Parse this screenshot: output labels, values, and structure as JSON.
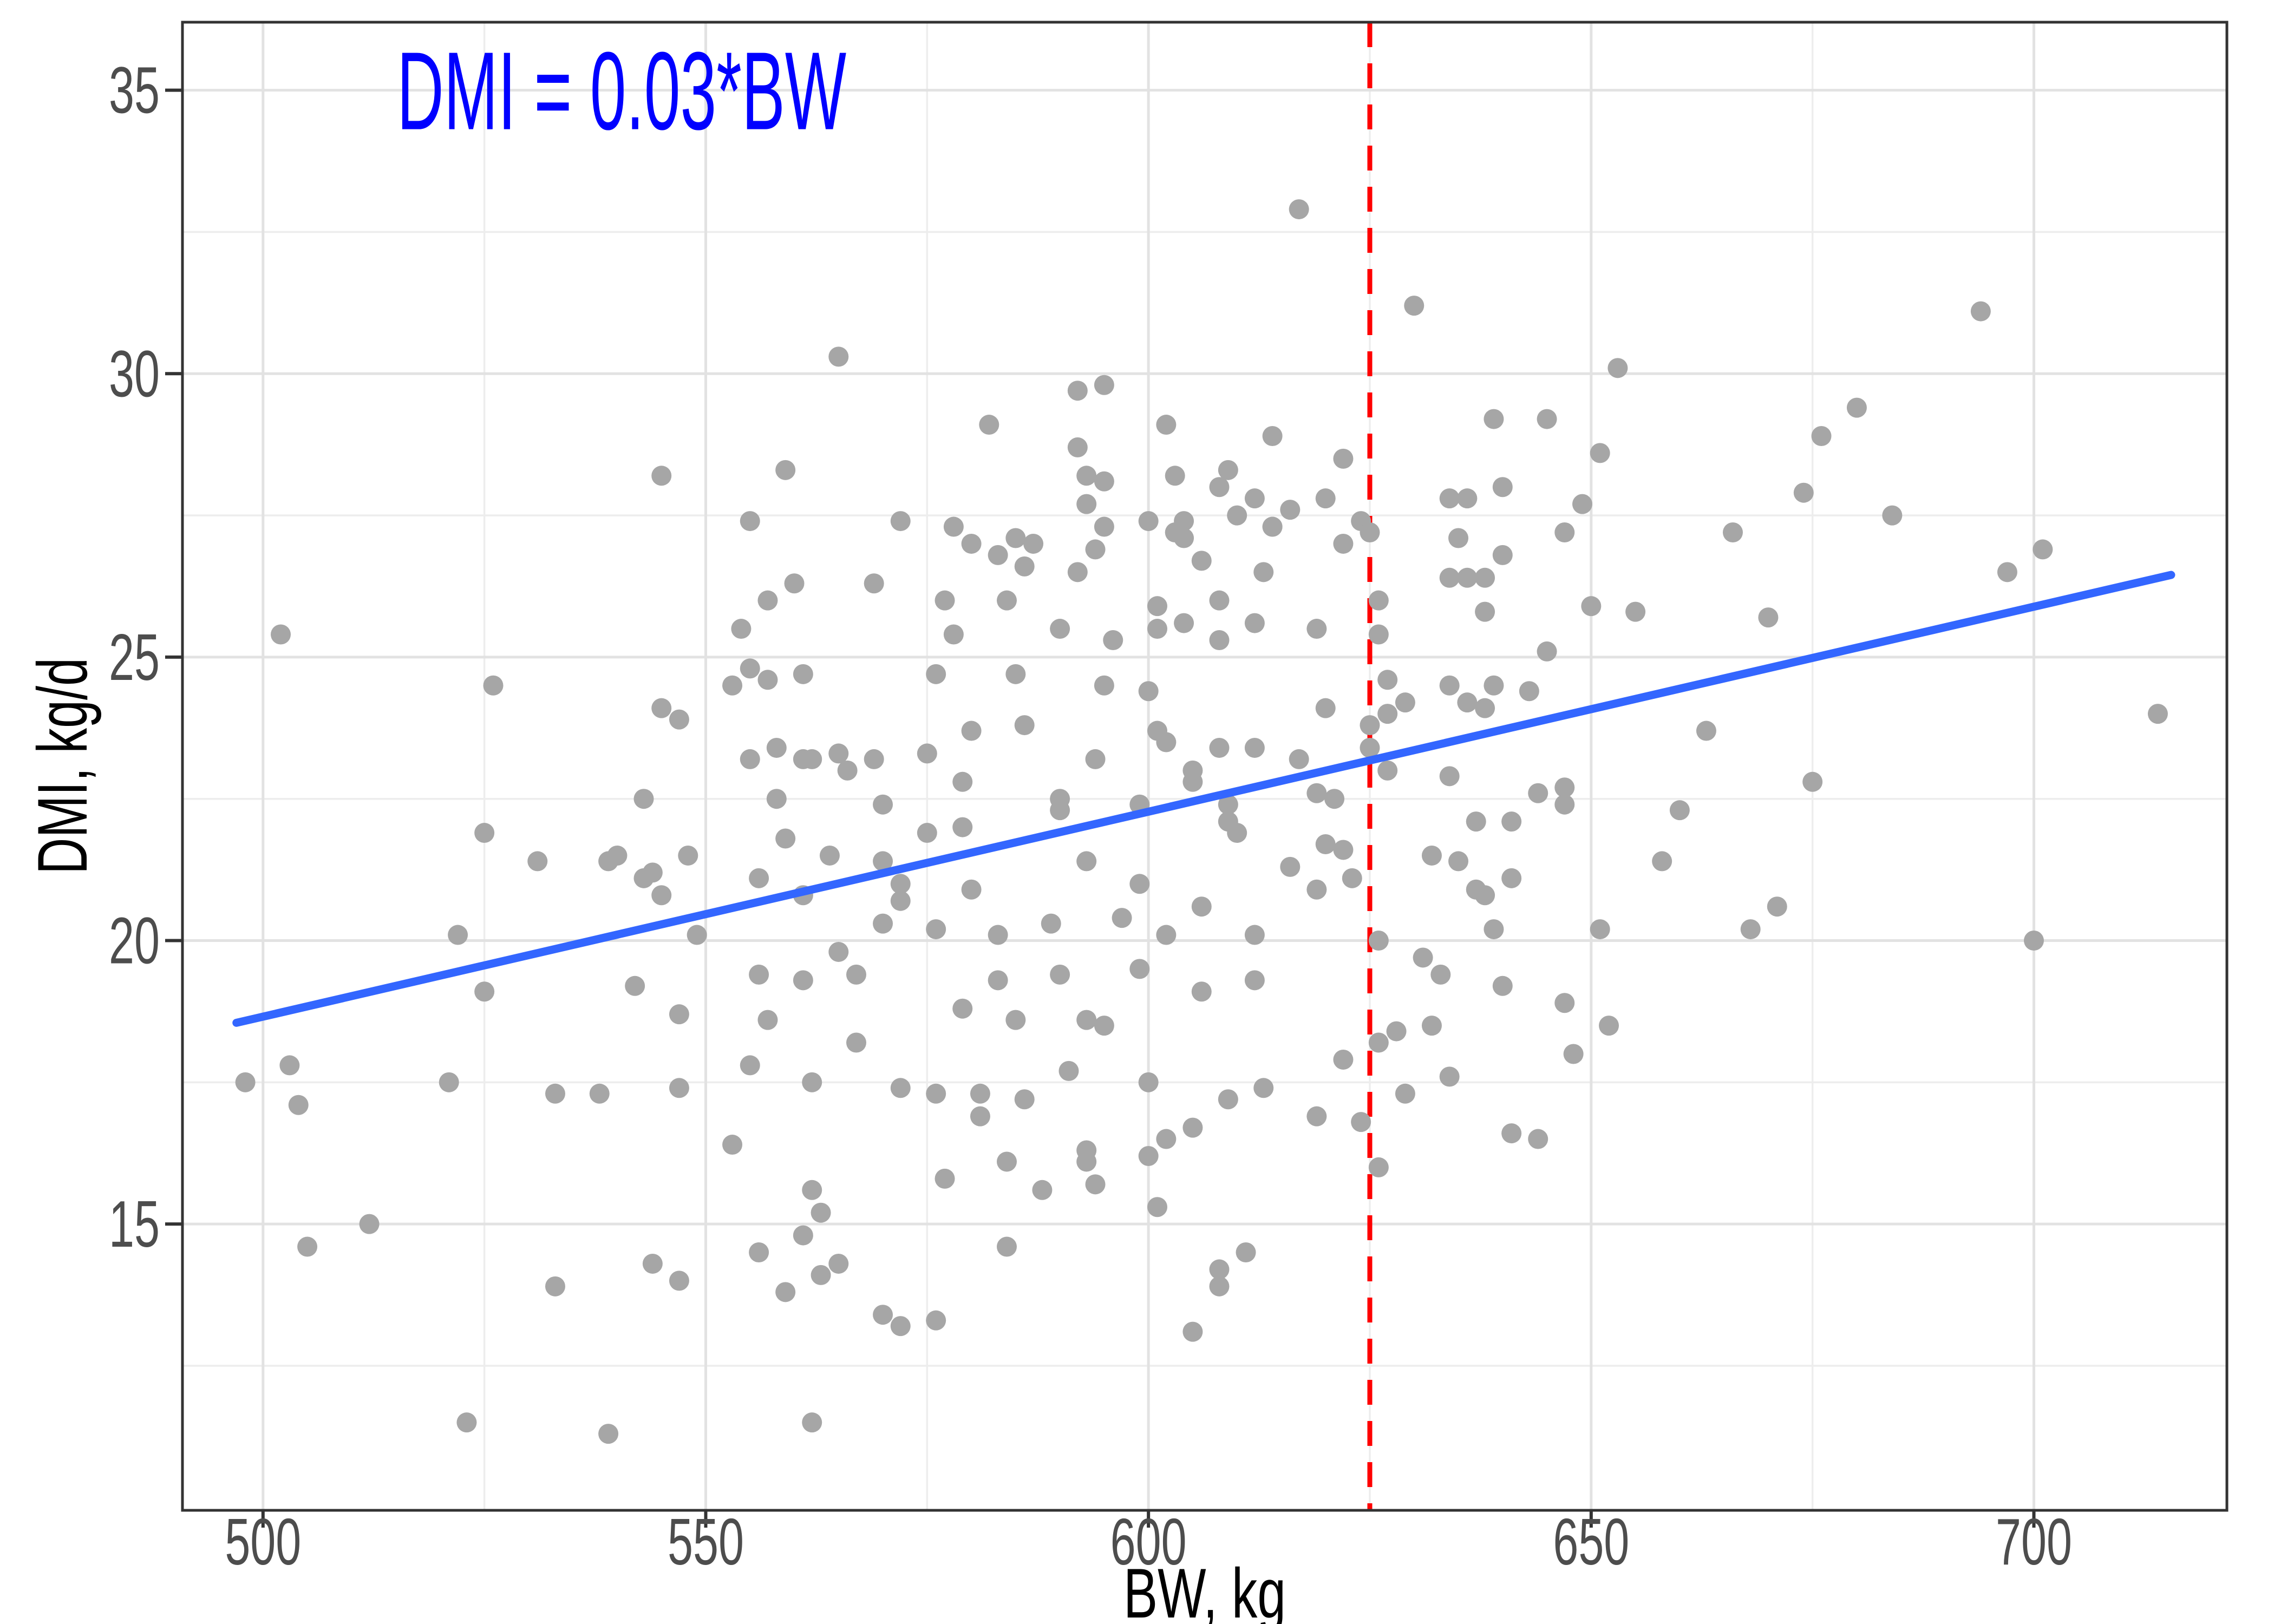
{
  "chart_data": {
    "type": "scatter",
    "title": "",
    "xlabel": "BW, kg",
    "ylabel": "DMI, kg/d",
    "annotation": {
      "text": "DMI = 0.03*BW",
      "x": 540.5,
      "y": 35,
      "color": "#0000FF"
    },
    "xlim": [
      490.9,
      721.8
    ],
    "ylim": [
      9.95,
      36.2
    ],
    "x_ticks": [
      500,
      550,
      600,
      650,
      700
    ],
    "y_ticks": [
      15,
      20,
      25,
      30,
      35
    ],
    "x_minor_ticks": [
      525,
      575,
      625,
      675
    ],
    "y_minor_ticks": [
      12.5,
      17.5,
      22.5,
      27.5,
      32.5
    ],
    "grid": true,
    "legend_position": "none",
    "point_color": "#A6A6A6",
    "major_grid_color": "#E2E2E2",
    "minor_grid_color": "#EDEDED",
    "panel_border_color": "#333333",
    "tick_color": "#333333",
    "vline": {
      "x": 625,
      "color": "#FF0000",
      "style": "dashed"
    },
    "trend_line": {
      "x1": 497,
      "y1": 18.55,
      "x2": 715.5,
      "y2": 26.45,
      "color": "#3366FF"
    },
    "points": [
      [
        545,
        28.2
      ],
      [
        565,
        30.3
      ],
      [
        559,
        28.3
      ],
      [
        582,
        29.1
      ],
      [
        592,
        29.7
      ],
      [
        595,
        29.8
      ],
      [
        592,
        28.7
      ],
      [
        593,
        28.2
      ],
      [
        595,
        28.1
      ],
      [
        593,
        27.7
      ],
      [
        602,
        29.1
      ],
      [
        603,
        28.2
      ],
      [
        617,
        32.9
      ],
      [
        630,
        31.2
      ],
      [
        653,
        30.1
      ],
      [
        614,
        28.9
      ],
      [
        609,
        28.3
      ],
      [
        608,
        28.0
      ],
      [
        610,
        27.5
      ],
      [
        616,
        27.6
      ],
      [
        612,
        27.8
      ],
      [
        620,
        27.8
      ],
      [
        614,
        27.3
      ],
      [
        622,
        28.5
      ],
      [
        639,
        29.2
      ],
      [
        645,
        29.2
      ],
      [
        651,
        28.6
      ],
      [
        640,
        28.0
      ],
      [
        634,
        27.8
      ],
      [
        636,
        27.8
      ],
      [
        649,
        27.7
      ],
      [
        647,
        27.2
      ],
      [
        635,
        27.1
      ],
      [
        666,
        27.2
      ],
      [
        684,
        27.5
      ],
      [
        694,
        31.1
      ],
      [
        680,
        29.4
      ],
      [
        676,
        28.9
      ],
      [
        674,
        27.9
      ],
      [
        701,
        26.9
      ],
      [
        697,
        26.5
      ],
      [
        670,
        25.7
      ],
      [
        502,
        25.4
      ],
      [
        526,
        24.5
      ],
      [
        545,
        24.1
      ],
      [
        547,
        23.9
      ],
      [
        543,
        22.5
      ],
      [
        525,
        21.9
      ],
      [
        531,
        21.4
      ],
      [
        539,
        21.4
      ],
      [
        540,
        21.5
      ],
      [
        543,
        21.1
      ],
      [
        544,
        21.2
      ],
      [
        545,
        20.8
      ],
      [
        522,
        20.1
      ],
      [
        525,
        19.1
      ],
      [
        542,
        19.2
      ],
      [
        548,
        21.5
      ],
      [
        549,
        20.1
      ],
      [
        555,
        27.4
      ],
      [
        572,
        27.4
      ],
      [
        578,
        27.3
      ],
      [
        580,
        27.0
      ],
      [
        585,
        27.1
      ],
      [
        587,
        27.0
      ],
      [
        583,
        26.8
      ],
      [
        586,
        26.6
      ],
      [
        569,
        26.3
      ],
      [
        560,
        26.3
      ],
      [
        557,
        26.0
      ],
      [
        554,
        25.5
      ],
      [
        577,
        26.0
      ],
      [
        578,
        25.4
      ],
      [
        584,
        26.0
      ],
      [
        590,
        25.5
      ],
      [
        594,
        26.9
      ],
      [
        595,
        27.3
      ],
      [
        600,
        27.4
      ],
      [
        603,
        27.2
      ],
      [
        592,
        26.5
      ],
      [
        596,
        25.3
      ],
      [
        601,
        25.9
      ],
      [
        601,
        25.5
      ],
      [
        553,
        24.5
      ],
      [
        555,
        24.8
      ],
      [
        557,
        24.6
      ],
      [
        561,
        24.7
      ],
      [
        576,
        24.7
      ],
      [
        585,
        24.7
      ],
      [
        595,
        24.5
      ],
      [
        600,
        24.4
      ],
      [
        586,
        23.8
      ],
      [
        580,
        23.7
      ],
      [
        575,
        23.3
      ],
      [
        555,
        23.2
      ],
      [
        558,
        23.4
      ],
      [
        561,
        23.2
      ],
      [
        562,
        23.2
      ],
      [
        565,
        23.3
      ],
      [
        566,
        23.0
      ],
      [
        569,
        23.2
      ],
      [
        579,
        22.8
      ],
      [
        594,
        23.2
      ],
      [
        558,
        22.5
      ],
      [
        570,
        22.4
      ],
      [
        590,
        22.5
      ],
      [
        590,
        22.3
      ],
      [
        593,
        21.4
      ],
      [
        599,
        22.4
      ],
      [
        599,
        21.0
      ],
      [
        559,
        21.8
      ],
      [
        564,
        21.5
      ],
      [
        570,
        21.4
      ],
      [
        556,
        21.1
      ],
      [
        561,
        20.8
      ],
      [
        575,
        21.9
      ],
      [
        579,
        22.0
      ],
      [
        580,
        20.9
      ],
      [
        572,
        21.0
      ],
      [
        572,
        20.7
      ],
      [
        570,
        20.3
      ],
      [
        576,
        20.2
      ],
      [
        583,
        20.1
      ],
      [
        589,
        20.3
      ],
      [
        597,
        20.4
      ],
      [
        602,
        20.1
      ],
      [
        565,
        19.8
      ],
      [
        567,
        19.4
      ],
      [
        556,
        19.4
      ],
      [
        561,
        19.3
      ],
      [
        583,
        19.3
      ],
      [
        590,
        19.4
      ],
      [
        599,
        19.5
      ],
      [
        579,
        18.8
      ],
      [
        614,
        27.3
      ],
      [
        624,
        27.4
      ],
      [
        625,
        27.2
      ],
      [
        622,
        27.0
      ],
      [
        613,
        26.5
      ],
      [
        606,
        26.7
      ],
      [
        604,
        27.4
      ],
      [
        604,
        27.1
      ],
      [
        608,
        26.0
      ],
      [
        604,
        25.6
      ],
      [
        608,
        25.3
      ],
      [
        612,
        25.6
      ],
      [
        619,
        25.5
      ],
      [
        626,
        26.0
      ],
      [
        626,
        25.4
      ],
      [
        638,
        26.4
      ],
      [
        636,
        26.4
      ],
      [
        634,
        26.4
      ],
      [
        640,
        26.8
      ],
      [
        638,
        25.8
      ],
      [
        650,
        25.9
      ],
      [
        655,
        25.8
      ],
      [
        645,
        25.1
      ],
      [
        627,
        24.6
      ],
      [
        634,
        24.5
      ],
      [
        636,
        24.2
      ],
      [
        638,
        24.1
      ],
      [
        639,
        24.5
      ],
      [
        643,
        24.4
      ],
      [
        620,
        24.1
      ],
      [
        627,
        24.0
      ],
      [
        625,
        23.8
      ],
      [
        629,
        24.2
      ],
      [
        627,
        23.0
      ],
      [
        608,
        23.4
      ],
      [
        617,
        23.2
      ],
      [
        634,
        22.9
      ],
      [
        625,
        23.4
      ],
      [
        612,
        23.4
      ],
      [
        601,
        23.7
      ],
      [
        619,
        22.6
      ],
      [
        621,
        22.5
      ],
      [
        609,
        22.4
      ],
      [
        609,
        22.1
      ],
      [
        610,
        21.9
      ],
      [
        637,
        22.1
      ],
      [
        641,
        22.1
      ],
      [
        644,
        22.6
      ],
      [
        647,
        22.7
      ],
      [
        647,
        22.4
      ],
      [
        616,
        21.3
      ],
      [
        620,
        21.7
      ],
      [
        622,
        21.6
      ],
      [
        623,
        21.1
      ],
      [
        619,
        20.9
      ],
      [
        632,
        21.5
      ],
      [
        635,
        21.4
      ],
      [
        637,
        20.9
      ],
      [
        638,
        20.8
      ],
      [
        641,
        21.1
      ],
      [
        606,
        20.6
      ],
      [
        612,
        20.1
      ],
      [
        626,
        20.0
      ],
      [
        631,
        19.7
      ],
      [
        633,
        19.4
      ],
      [
        639,
        20.2
      ],
      [
        640,
        19.2
      ],
      [
        647,
        18.9
      ],
      [
        651,
        20.2
      ],
      [
        660,
        22.3
      ],
      [
        658,
        21.4
      ],
      [
        612,
        19.3
      ],
      [
        606,
        19.1
      ],
      [
        602,
        23.5
      ],
      [
        605,
        23.0
      ],
      [
        605,
        22.8
      ],
      [
        714,
        24.0
      ],
      [
        663,
        23.7
      ],
      [
        675,
        22.8
      ],
      [
        671,
        20.6
      ],
      [
        668,
        20.2
      ],
      [
        700,
        20.0
      ],
      [
        498,
        17.5
      ],
      [
        503,
        17.8
      ],
      [
        504,
        17.1
      ],
      [
        521,
        17.5
      ],
      [
        533,
        17.3
      ],
      [
        538,
        17.3
      ],
      [
        547,
        17.4
      ],
      [
        547,
        18.7
      ],
      [
        512,
        15.0
      ],
      [
        505,
        14.6
      ],
      [
        544,
        14.3
      ],
      [
        547,
        14.0
      ],
      [
        533,
        13.9
      ],
      [
        523,
        11.5
      ],
      [
        539,
        11.3
      ],
      [
        557,
        18.6
      ],
      [
        567,
        18.2
      ],
      [
        555,
        17.8
      ],
      [
        562,
        17.5
      ],
      [
        572,
        17.4
      ],
      [
        576,
        17.3
      ],
      [
        581,
        17.3
      ],
      [
        585,
        18.6
      ],
      [
        593,
        18.6
      ],
      [
        595,
        18.5
      ],
      [
        581,
        16.9
      ],
      [
        586,
        17.2
      ],
      [
        591,
        17.7
      ],
      [
        600,
        17.5
      ],
      [
        553,
        16.4
      ],
      [
        584,
        16.1
      ],
      [
        593,
        16.3
      ],
      [
        593,
        16.1
      ],
      [
        577,
        15.8
      ],
      [
        588,
        15.6
      ],
      [
        594,
        15.7
      ],
      [
        602,
        16.5
      ],
      [
        605,
        16.7
      ],
      [
        600,
        16.2
      ],
      [
        601,
        15.3
      ],
      [
        562,
        15.6
      ],
      [
        563,
        15.2
      ],
      [
        561,
        14.8
      ],
      [
        556,
        14.5
      ],
      [
        565,
        14.3
      ],
      [
        563,
        14.1
      ],
      [
        559,
        13.8
      ],
      [
        570,
        13.4
      ],
      [
        572,
        13.2
      ],
      [
        576,
        13.3
      ],
      [
        584,
        14.6
      ],
      [
        562,
        11.5
      ],
      [
        609,
        17.2
      ],
      [
        613,
        17.4
      ],
      [
        619,
        16.9
      ],
      [
        622,
        17.9
      ],
      [
        624,
        16.8
      ],
      [
        626,
        18.2
      ],
      [
        628,
        18.4
      ],
      [
        632,
        18.5
      ],
      [
        629,
        17.3
      ],
      [
        634,
        17.6
      ],
      [
        626,
        16.0
      ],
      [
        641,
        16.6
      ],
      [
        644,
        16.5
      ],
      [
        648,
        18.0
      ],
      [
        652,
        18.5
      ],
      [
        608,
        14.2
      ],
      [
        608,
        13.9
      ],
      [
        611,
        14.5
      ],
      [
        605,
        13.1
      ]
    ]
  }
}
